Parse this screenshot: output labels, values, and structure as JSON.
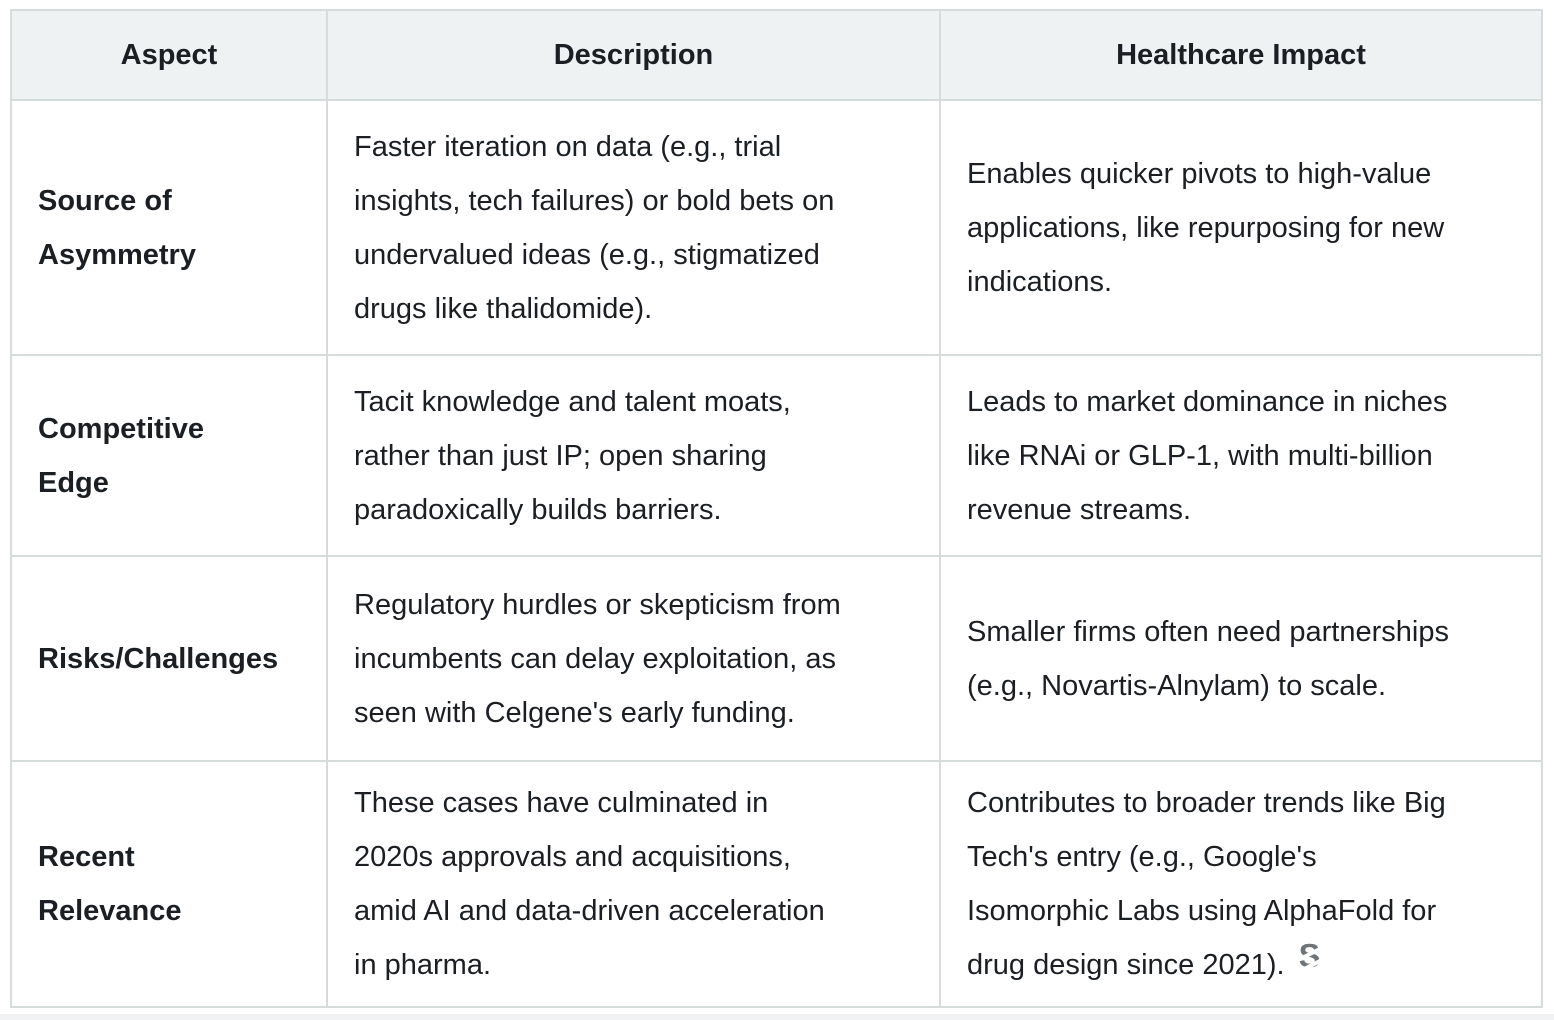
{
  "table": {
    "columns": [
      {
        "label": "Aspect"
      },
      {
        "label": "Description"
      },
      {
        "label": "Healthcare Impact"
      }
    ],
    "rows": [
      {
        "aspect": "Source of\nAsymmetry",
        "description": "Faster iteration on data (e.g., trial\ninsights, tech failures) or bold bets on\nundervalued ideas (e.g., stigmatized\ndrugs like thalidomide).",
        "impact": "Enables quicker pivots to high-value\napplications, like repurposing for new\nindications."
      },
      {
        "aspect": "Competitive\nEdge",
        "description": "Tacit knowledge and talent moats,\nrather than just IP; open sharing\nparadoxically builds barriers.",
        "impact": "Leads to market dominance in niches\nlike RNAi or GLP-1, with multi-billion\nrevenue streams."
      },
      {
        "aspect": "Risks/Challenges",
        "description": "Regulatory hurdles or skepticism from\nincumbents can delay exploitation, as\nseen with Celgene's early funding.",
        "impact": "Smaller firms often need partnerships\n(e.g., Novartis-Alnylam) to scale."
      },
      {
        "aspect": "Recent\nRelevance",
        "description": "These cases have culminated in\n2020s approvals and acquisitions,\namid AI and data-driven acceleration\nin pharma.",
        "impact": "Contributes to broader trends like Big\nTech's entry (e.g., Google's\nIsomorphic Labs using AlphaFold for\ndrug design since 2021)."
      }
    ]
  },
  "citation": {
    "glyph": "S"
  },
  "colors": {
    "header_bg": "#eef2f3",
    "grid_line": "#d6dbdc",
    "text": "#1b1f23",
    "citation_gray": "#6f7478"
  }
}
